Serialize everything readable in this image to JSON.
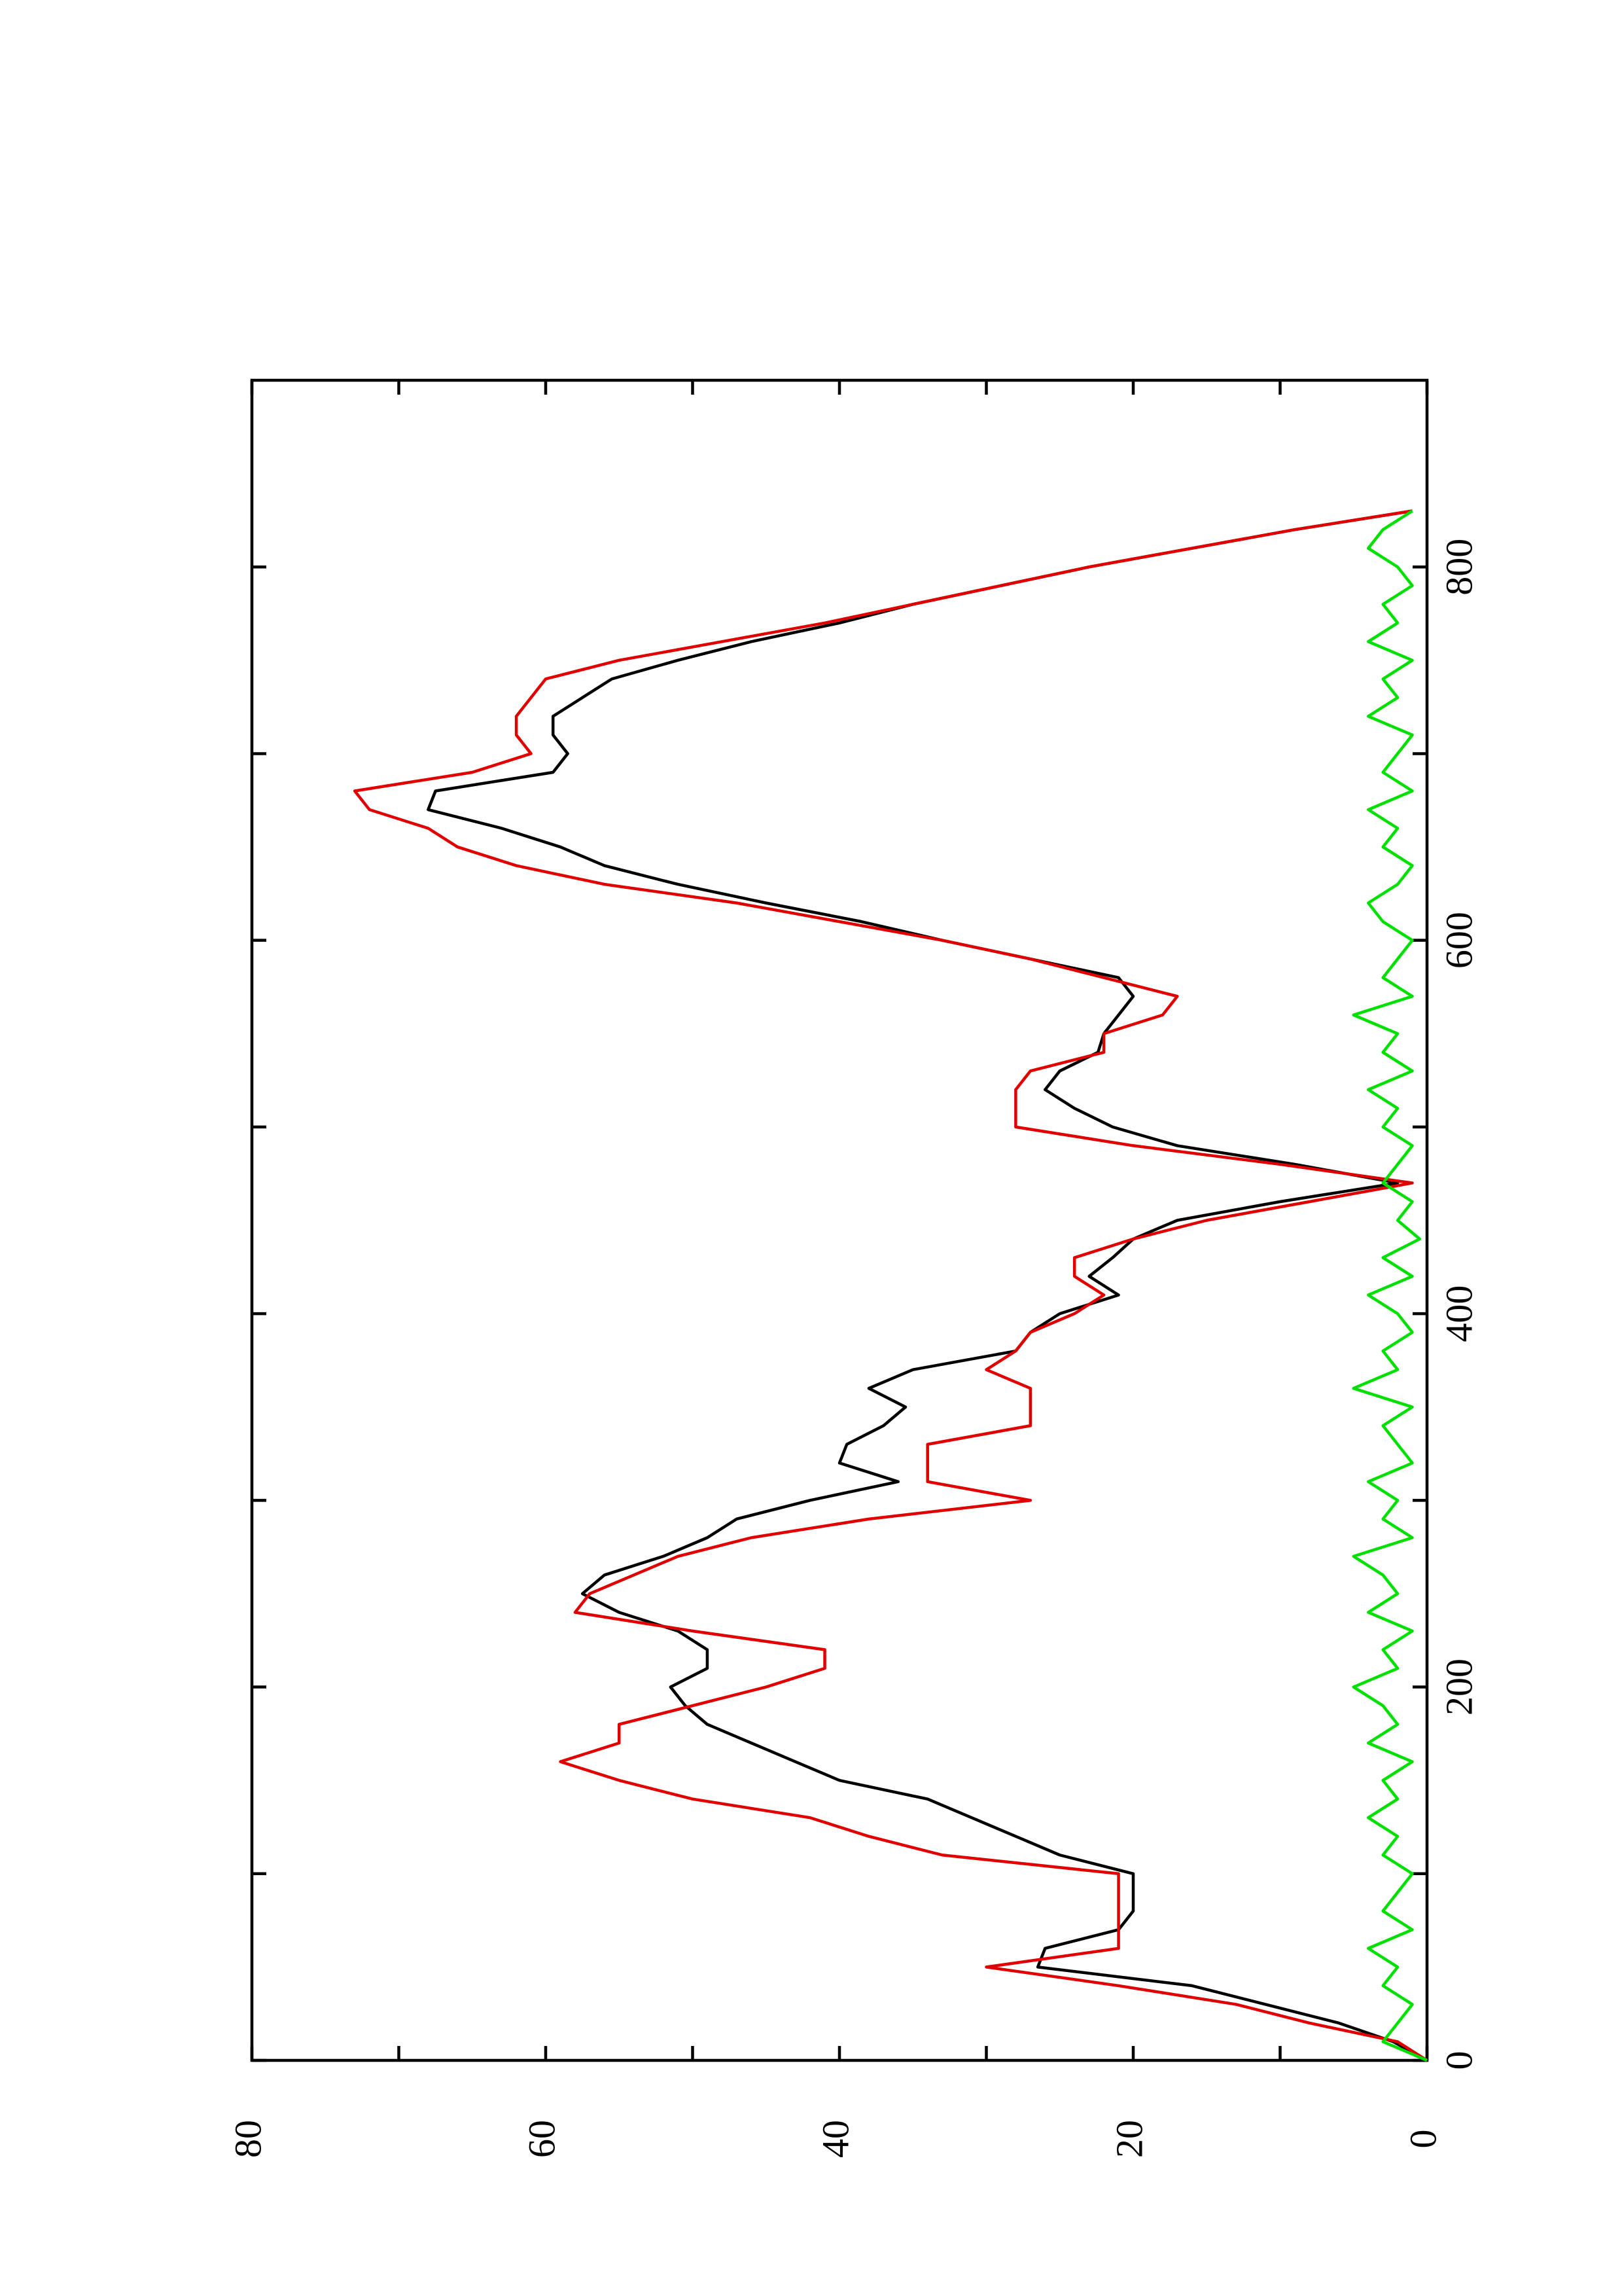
{
  "chart_data": {
    "type": "line",
    "x": [
      0,
      10,
      20,
      30,
      40,
      50,
      60,
      70,
      80,
      90,
      100,
      110,
      120,
      130,
      140,
      150,
      160,
      170,
      180,
      190,
      200,
      210,
      220,
      230,
      240,
      250,
      260,
      270,
      280,
      290,
      300,
      310,
      320,
      330,
      340,
      350,
      360,
      370,
      380,
      390,
      400,
      410,
      420,
      430,
      440,
      450,
      460,
      470,
      480,
      490,
      500,
      510,
      520,
      530,
      540,
      550,
      560,
      570,
      580,
      590,
      600,
      610,
      620,
      630,
      640,
      650,
      660,
      670,
      680,
      690,
      700,
      710,
      720,
      730,
      740,
      750,
      760,
      770,
      780,
      790,
      800,
      810,
      820,
      830
    ],
    "series": [
      {
        "name": "black",
        "color": "#000000",
        "values": [
          0,
          2.3,
          6,
          11,
          16,
          26.5,
          26,
          21,
          20,
          20,
          20,
          25,
          28,
          31,
          34,
          40,
          43,
          46,
          49,
          50.5,
          51.5,
          49,
          49,
          51,
          55,
          57.5,
          56,
          52,
          49,
          47,
          42,
          36,
          40,
          39.5,
          37,
          35.5,
          38,
          35,
          28,
          27,
          25,
          21,
          23,
          21.4,
          20,
          17,
          10,
          2,
          9,
          17,
          21.4,
          24,
          26,
          25,
          22.4,
          22,
          21,
          20,
          21,
          27,
          33,
          38.5,
          45,
          51,
          56,
          59,
          63,
          68,
          67.5,
          59.5,
          58.5,
          59.5,
          59.5,
          57.5,
          55.5,
          51,
          46,
          40,
          35,
          29,
          23,
          16,
          9,
          1
        ]
      },
      {
        "name": "red",
        "color": "#e00000",
        "values": [
          0,
          2,
          8,
          13,
          21,
          30,
          21,
          21,
          21,
          21,
          21,
          33,
          38,
          42,
          50,
          55,
          59,
          55,
          55,
          50,
          45,
          41,
          41,
          50,
          58,
          57,
          54,
          51,
          46,
          38,
          27,
          34,
          34,
          34,
          27,
          27,
          27,
          30,
          28,
          27,
          24,
          22,
          24,
          24,
          20,
          15,
          8,
          1,
          10,
          20,
          28,
          28,
          28,
          27,
          22,
          22,
          18,
          17,
          22,
          27,
          33,
          40,
          47,
          56,
          62,
          66,
          68,
          72,
          73,
          65,
          61,
          62,
          62,
          61,
          60,
          55,
          48,
          41,
          35,
          29,
          23,
          16,
          9,
          1
        ]
      },
      {
        "name": "green",
        "color": "#00e000",
        "values": [
          0,
          3,
          2,
          1,
          3,
          2,
          4,
          1,
          3,
          2,
          1,
          3,
          2,
          4,
          2,
          3,
          1,
          4,
          2,
          3,
          5,
          2,
          3,
          1,
          4,
          2,
          3,
          5,
          1,
          3,
          2,
          4,
          1,
          2,
          3,
          1,
          5,
          2,
          3,
          1,
          2,
          4,
          1,
          3,
          0.5,
          2,
          1,
          3,
          2,
          1,
          3,
          2,
          4,
          1,
          3,
          2,
          5,
          1,
          3,
          2,
          1,
          3,
          4,
          2,
          1,
          3,
          2,
          4,
          1,
          3,
          2,
          1,
          4,
          2,
          3,
          1,
          4,
          2,
          3,
          1,
          2,
          4,
          3,
          1
        ]
      }
    ],
    "xlim": [
      0,
      900
    ],
    "xticks": [
      0,
      200,
      400,
      600,
      800
    ],
    "xminor_ticks": [
      100,
      300,
      500,
      700
    ],
    "ylim": [
      0,
      80
    ],
    "yticks": [
      0,
      20,
      40,
      60,
      80
    ],
    "yminor_ticks": [
      10,
      30,
      50,
      70
    ]
  }
}
